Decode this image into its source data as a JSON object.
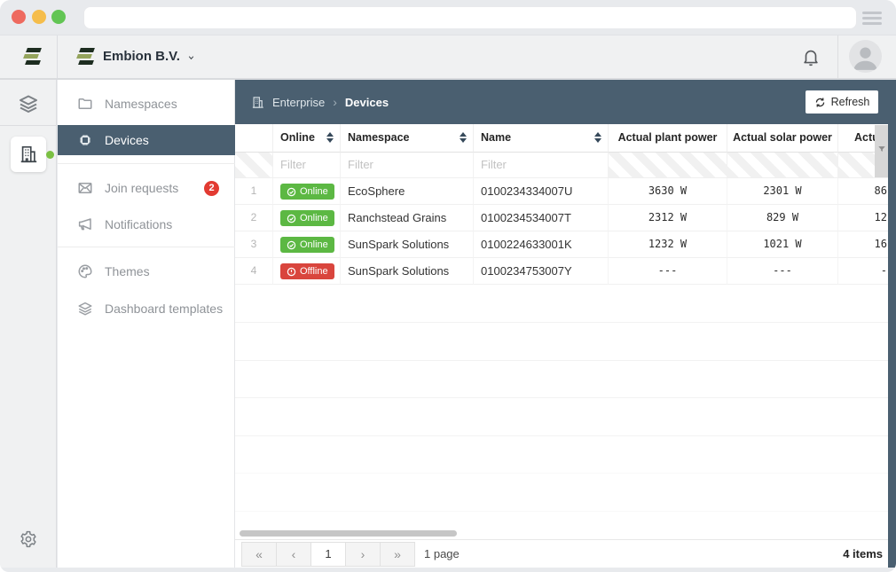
{
  "browser": {
    "url": ""
  },
  "header": {
    "company": "Embion B.V."
  },
  "sidebar": {
    "items": [
      {
        "label": "Namespaces"
      },
      {
        "label": "Devices",
        "selected": true
      },
      {
        "label": "Join requests",
        "badge": "2"
      },
      {
        "label": "Notifications"
      },
      {
        "label": "Themes"
      },
      {
        "label": "Dashboard templates"
      }
    ]
  },
  "breadcrumb": {
    "root": "Enterprise",
    "separator": "›",
    "current": "Devices"
  },
  "toolbar": {
    "refresh_label": "Refresh"
  },
  "table": {
    "columns": [
      {
        "label": ""
      },
      {
        "label": "Online",
        "sortable": true,
        "filter_placeholder": "Filter"
      },
      {
        "label": "Namespace",
        "sortable": true,
        "filter_placeholder": "Filter"
      },
      {
        "label": "Name",
        "sortable": true,
        "filter_placeholder": "Filter"
      },
      {
        "label": "Actual plant power"
      },
      {
        "label": "Actual solar power"
      },
      {
        "label": "Actu",
        "clipped": true
      }
    ],
    "rows": [
      {
        "index": "1",
        "status": "Online",
        "namespace": "EcoSphere",
        "name": "0100234334007U",
        "plant_power": "3630 W",
        "solar_power": "2301 W",
        "extra": "86"
      },
      {
        "index": "2",
        "status": "Online",
        "namespace": "Ranchstead Grains",
        "name": "0100234534007T",
        "plant_power": "2312 W",
        "solar_power": "829 W",
        "extra": "12"
      },
      {
        "index": "3",
        "status": "Online",
        "namespace": "SunSpark Solutions",
        "name": "0100224633001K",
        "plant_power": "1232 W",
        "solar_power": "1021 W",
        "extra": "16"
      },
      {
        "index": "4",
        "status": "Offline",
        "namespace": "SunSpark Solutions",
        "name": "0100234753007Y",
        "plant_power": "---",
        "solar_power": "---",
        "extra": "-"
      }
    ]
  },
  "pagination": {
    "first_label": "«",
    "prev_label": "‹",
    "page": "1",
    "next_label": "›",
    "last_label": "»",
    "page_count_label": "1 page",
    "total_label": "4 items"
  },
  "colors": {
    "accent_dark": "#4a5f70",
    "online_green": "#5cb843",
    "offline_red": "#d9453d",
    "badge_red": "#e23b32",
    "logo_dark": "#1d2d20",
    "logo_green": "#94a45c",
    "rail_dot_green": "#7bc043"
  }
}
